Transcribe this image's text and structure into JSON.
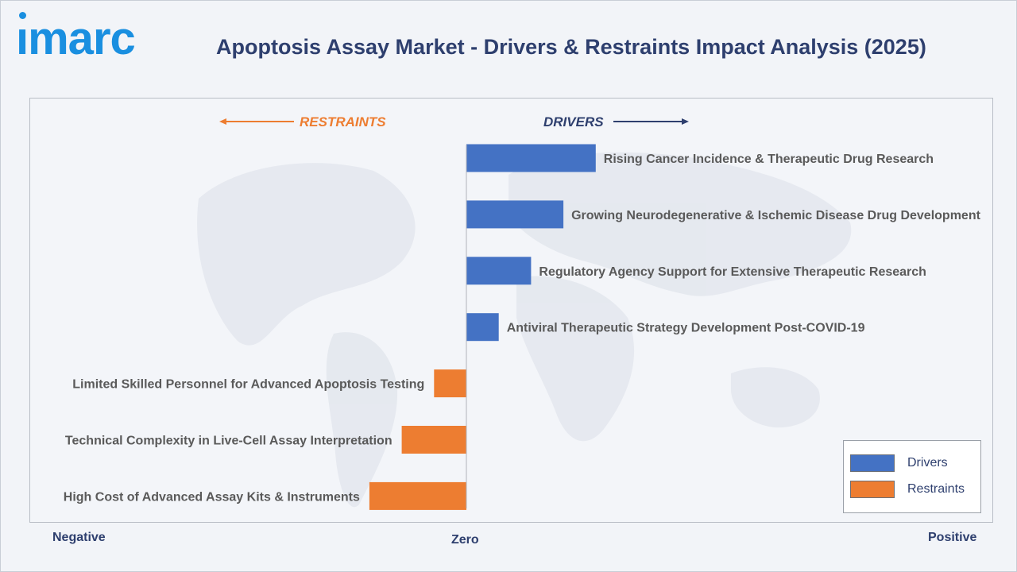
{
  "header": {
    "logo_text": "ımarc",
    "title": "Apoptosis Assay Market - Drivers & Restraints Impact Analysis (2025)"
  },
  "colors": {
    "drivers": "#4472c4",
    "restraints": "#ed7d31",
    "text": "#5a5a5a",
    "title": "#2e3f6e",
    "drivers_heading": "#2e3f6e",
    "restraints_heading": "#ed7d31"
  },
  "chart_data": {
    "type": "bar",
    "orientation": "horizontal",
    "title": "Apoptosis Assay Market - Drivers & Restraints Impact Analysis (2025)",
    "headings": {
      "restraints": "RESTRAINTS",
      "drivers": "DRIVERS"
    },
    "axis_labels": {
      "negative": "Negative",
      "zero": "Zero",
      "positive": "Positive"
    },
    "xlim": [
      -5,
      5
    ],
    "categories": [
      "Rising Cancer Incidence & Therapeutic Drug Research",
      "Growing Neurodegenerative & Ischemic Disease Drug Development",
      "Regulatory Agency Support for Extensive Therapeutic Research",
      "Antiviral Therapeutic Strategy Development Post-COVID-19",
      "Limited Skilled Personnel for Advanced Apoptosis Testing",
      "Technical Complexity in Live-Cell Assay Interpretation",
      "High Cost of Advanced Assay Kits & Instruments"
    ],
    "series": [
      {
        "name": "Drivers",
        "values": [
          4,
          3,
          2,
          1,
          0,
          0,
          0
        ]
      },
      {
        "name": "Restraints",
        "values": [
          0,
          0,
          0,
          0,
          -1,
          -2,
          -3
        ]
      }
    ],
    "legend": {
      "position": "bottom-right",
      "entries": [
        "Drivers",
        "Restraints"
      ]
    },
    "grid": false
  }
}
